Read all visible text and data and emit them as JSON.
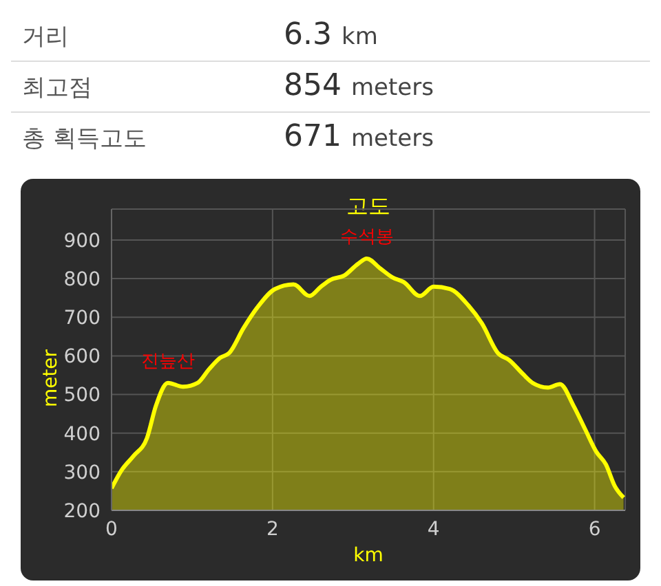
{
  "chart_data": [
    {
      "type": "other",
      "categories": [
        "거리",
        "최고점",
        "총 획득고도"
      ],
      "values": [
        6.3,
        854,
        671
      ],
      "data_labels": true,
      "annotations": [
        "km",
        "meters",
        "meters"
      ]
    },
    {
      "type": "area",
      "title": "고도",
      "xlabel": "km",
      "ylabel": "meter",
      "x": [
        0,
        0.125,
        0.27,
        0.44,
        0.55,
        0.7,
        0.89,
        1.07,
        1.21,
        1.35,
        1.46,
        1.64,
        1.81,
        2.03,
        2.26,
        2.46,
        2.6,
        2.72,
        2.89,
        3.06,
        3.17,
        3.34,
        3.49,
        3.63,
        3.83,
        4.0,
        4.2,
        4.43,
        4.6,
        4.8,
        4.94,
        5.11,
        5.23,
        5.42,
        5.57,
        5.74,
        5.88,
        6.02,
        6.14,
        6.25,
        6.36
      ],
      "series": [
        {
          "color": "#ffff00",
          "values": [
            257,
            304,
            340,
            387,
            470,
            530,
            520,
            530,
            565,
            595,
            607,
            672,
            725,
            773,
            785,
            755,
            779,
            797,
            808,
            838,
            852,
            826,
            803,
            791,
            755,
            779,
            773,
            731,
            684,
            607,
            589,
            553,
            530,
            518,
            527,
            470,
            411,
            352,
            319,
            263,
            233
          ]
        }
      ],
      "xlim": [
        0,
        6.38
      ],
      "xticks": [
        0,
        2,
        4,
        6
      ],
      "ylim": [
        200,
        980
      ],
      "yticks": [
        200,
        300,
        400,
        500,
        600,
        700,
        800,
        900
      ],
      "grid": true,
      "annotations": [
        {
          "text": "진늪산",
          "x": 0.7,
          "y": 530
        },
        {
          "text": "수석봉",
          "x": 3.17,
          "y": 852
        }
      ]
    }
  ]
}
